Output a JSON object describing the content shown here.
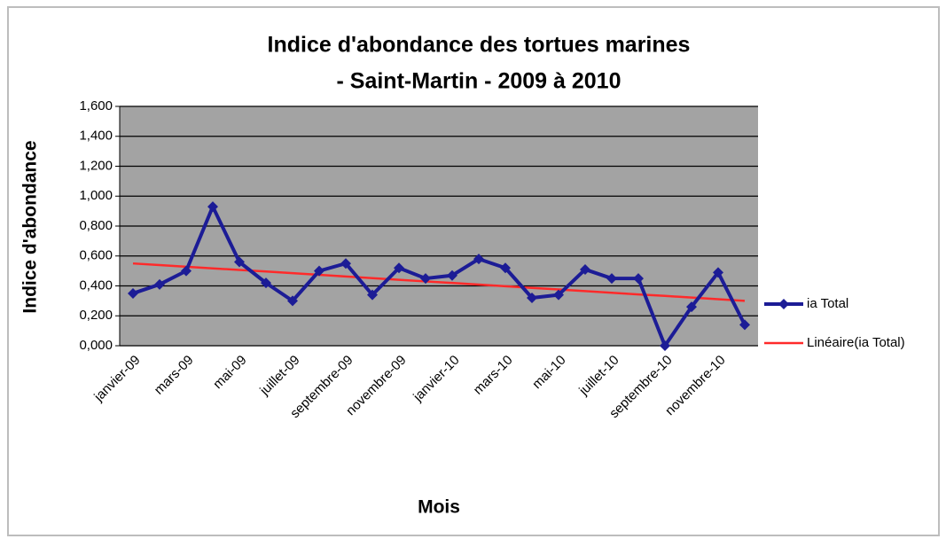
{
  "chart_data": {
    "type": "line",
    "title_lines": [
      "Indice d'abondance des tortues marines",
      "- Saint-Martin - 2009 à 2010"
    ],
    "x_label": "Mois",
    "y_label": "Indice d'abondance",
    "categories": [
      "janvier-09",
      null,
      "mars-09",
      null,
      "mai-09",
      null,
      "juillet-09",
      null,
      "septembre-09",
      null,
      "novembre-09",
      null,
      "janvier-10",
      null,
      "mars-10",
      null,
      "mai-10",
      null,
      "juillet-10",
      null,
      "septembre-10",
      null,
      "novembre-10",
      null
    ],
    "series": [
      {
        "name": "ia Total",
        "color": "#1c1c96",
        "marker": "diamond",
        "values": [
          0.35,
          0.41,
          0.5,
          0.93,
          0.56,
          0.42,
          0.3,
          0.5,
          0.55,
          0.34,
          0.52,
          0.45,
          0.47,
          0.58,
          0.52,
          0.32,
          0.34,
          0.51,
          0.45,
          0.45,
          0.0,
          0.26,
          0.49,
          0.14
        ]
      },
      {
        "name": "Linéaire(ia Total)",
        "color": "#ff2a2a",
        "values": [
          0.55,
          0.539,
          0.528,
          0.517,
          0.507,
          0.496,
          0.485,
          0.474,
          0.463,
          0.452,
          0.441,
          0.43,
          0.42,
          0.409,
          0.398,
          0.387,
          0.376,
          0.365,
          0.354,
          0.343,
          0.333,
          0.322,
          0.311,
          0.3
        ]
      }
    ],
    "ylim": [
      0,
      1.6
    ],
    "yticks": [
      {
        "value": 0,
        "label": "0,000"
      },
      {
        "value": 0.2,
        "label": "0,200"
      },
      {
        "value": 0.4,
        "label": "0,400"
      },
      {
        "value": 0.6,
        "label": "0,600"
      },
      {
        "value": 0.8,
        "label": "0,800"
      },
      {
        "value": 1.0,
        "label": "1,000"
      },
      {
        "value": 1.2,
        "label": "1,200"
      },
      {
        "value": 1.4,
        "label": "1,400"
      },
      {
        "value": 1.6,
        "label": "1,600"
      }
    ],
    "grid": true,
    "plot_background": "#a3a3a3",
    "legend": "right"
  }
}
